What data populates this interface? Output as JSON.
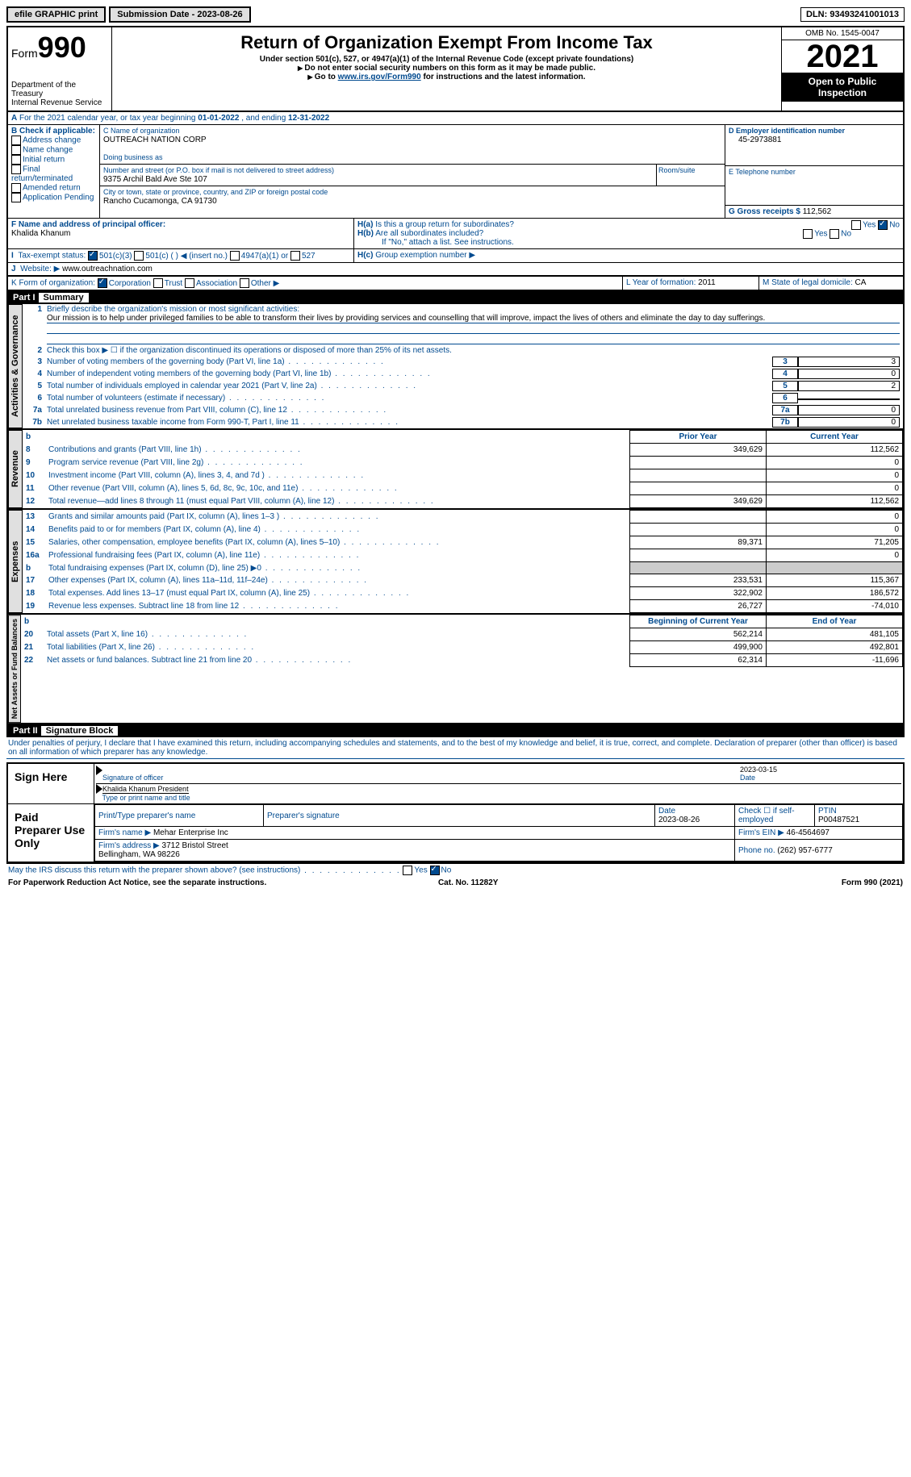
{
  "top": {
    "efile": "efile GRAPHIC print",
    "subdate_lbl": "Submission Date - ",
    "subdate": "2023-08-26",
    "dln_lbl": "DLN: ",
    "dln": "93493241001013"
  },
  "hdr": {
    "form": "Form",
    "num": "990",
    "dept": "Department of the Treasury\nInternal Revenue Service",
    "title": "Return of Organization Exempt From Income Tax",
    "sub1": "Under section 501(c), 527, or 4947(a)(1) of the Internal Revenue Code (except private foundations)",
    "sub2": "Do not enter social security numbers on this form as it may be made public.",
    "sub3": "Go to ",
    "link": "www.irs.gov/Form990",
    "sub3b": " for instructions and the latest information.",
    "omb": "OMB No. 1545-0047",
    "year": "2021",
    "inspect": "Open to Public Inspection"
  },
  "A": {
    "text": "For the 2021 calendar year, or tax year beginning ",
    "begin": "01-01-2022",
    "mid": " , and ending ",
    "end": "12-31-2022"
  },
  "B": {
    "lbl": "B Check if applicable:",
    "items": [
      "Address change",
      "Name change",
      "Initial return",
      "Final return/terminated",
      "Amended return",
      "Application Pending"
    ]
  },
  "C": {
    "lbl": "C Name of organization",
    "name": "OUTREACH NATION CORP",
    "dba_lbl": "Doing business as",
    "addr_lbl": "Number and street (or P.O. box if mail is not delivered to street address)",
    "addr": "9375 Archil Bald Ave Ste 107",
    "room_lbl": "Room/suite",
    "city_lbl": "City or town, state or province, country, and ZIP or foreign postal code",
    "city": "Rancho Cucamonga, CA  91730"
  },
  "D": {
    "lbl": "D Employer identification number",
    "val": "45-2973881"
  },
  "E": {
    "lbl": "E Telephone number"
  },
  "G": {
    "lbl": "G Gross receipts $ ",
    "val": "112,562"
  },
  "F": {
    "lbl": "F Name and address of principal officer:",
    "name": "Khalida Khanum"
  },
  "H": {
    "a": "Is this a group return for subordinates?",
    "b": "Are all subordinates included?",
    "note": "If \"No,\" attach a list. See instructions.",
    "c": "Group exemption number ▶",
    "yes": "Yes",
    "no": "No"
  },
  "I": {
    "lbl": "Tax-exempt status:",
    "opts": [
      "501(c)(3)",
      "501(c) (  ) ◀ (insert no.)",
      "4947(a)(1) or",
      "527"
    ]
  },
  "J": {
    "lbl": "Website: ▶",
    "val": "www.outreachnation.com"
  },
  "K": {
    "lbl": "K Form of organization:",
    "opts": [
      "Corporation",
      "Trust",
      "Association",
      "Other ▶"
    ]
  },
  "L": {
    "lbl": "L Year of formation: ",
    "val": "2011"
  },
  "M": {
    "lbl": "M State of legal domicile: ",
    "val": "CA"
  },
  "p1": {
    "part": "Part I",
    "title": "Summary",
    "tab": "Activities & Governance",
    "l1": {
      "lbl": "Briefly describe the organization's mission or most significant activities:",
      "txt": "Our mission is to help under privileged families to be able to transform their lives by providing services and counselling that will improve, impact the lives of others and eliminate the day to day sufferings."
    },
    "l2": "Check this box ▶ ☐ if the organization discontinued its operations or disposed of more than 25% of its net assets.",
    "lines": [
      {
        "n": "3",
        "d": "Number of voting members of the governing body (Part VI, line 1a)",
        "v": "3"
      },
      {
        "n": "4",
        "d": "Number of independent voting members of the governing body (Part VI, line 1b)",
        "v": "0"
      },
      {
        "n": "5",
        "d": "Total number of individuals employed in calendar year 2021 (Part V, line 2a)",
        "v": "2"
      },
      {
        "n": "6",
        "d": "Total number of volunteers (estimate if necessary)",
        "v": ""
      },
      {
        "n": "7a",
        "d": "Total unrelated business revenue from Part VIII, column (C), line 12",
        "v": "0"
      },
      {
        "n": "7b",
        "d": "Net unrelated business taxable income from Form 990-T, Part I, line 11",
        "v": "0"
      }
    ]
  },
  "rev": {
    "tab": "Revenue",
    "hdr": [
      "",
      "Prior Year",
      "Current Year"
    ],
    "rows": [
      {
        "n": "8",
        "d": "Contributions and grants (Part VIII, line 1h)",
        "p": "349,629",
        "c": "112,562"
      },
      {
        "n": "9",
        "d": "Program service revenue (Part VIII, line 2g)",
        "p": "",
        "c": "0"
      },
      {
        "n": "10",
        "d": "Investment income (Part VIII, column (A), lines 3, 4, and 7d )",
        "p": "",
        "c": "0"
      },
      {
        "n": "11",
        "d": "Other revenue (Part VIII, column (A), lines 5, 6d, 8c, 9c, 10c, and 11e)",
        "p": "",
        "c": "0"
      },
      {
        "n": "12",
        "d": "Total revenue—add lines 8 through 11 (must equal Part VIII, column (A), line 12)",
        "p": "349,629",
        "c": "112,562"
      }
    ]
  },
  "exp": {
    "tab": "Expenses",
    "rows": [
      {
        "n": "13",
        "d": "Grants and similar amounts paid (Part IX, column (A), lines 1–3 )",
        "p": "",
        "c": "0"
      },
      {
        "n": "14",
        "d": "Benefits paid to or for members (Part IX, column (A), line 4)",
        "p": "",
        "c": "0"
      },
      {
        "n": "15",
        "d": "Salaries, other compensation, employee benefits (Part IX, column (A), lines 5–10)",
        "p": "89,371",
        "c": "71,205"
      },
      {
        "n": "16a",
        "d": "Professional fundraising fees (Part IX, column (A), line 11e)",
        "p": "",
        "c": "0"
      },
      {
        "n": "b",
        "d": "Total fundraising expenses (Part IX, column (D), line 25) ▶0",
        "p": "shade",
        "c": "shade"
      },
      {
        "n": "17",
        "d": "Other expenses (Part IX, column (A), lines 11a–11d, 11f–24e)",
        "p": "233,531",
        "c": "115,367"
      },
      {
        "n": "18",
        "d": "Total expenses. Add lines 13–17 (must equal Part IX, column (A), line 25)",
        "p": "322,902",
        "c": "186,572"
      },
      {
        "n": "19",
        "d": "Revenue less expenses. Subtract line 18 from line 12",
        "p": "26,727",
        "c": "-74,010"
      }
    ]
  },
  "net": {
    "tab": "Net Assets or Fund Balances",
    "hdr": [
      "",
      "Beginning of Current Year",
      "End of Year"
    ],
    "rows": [
      {
        "n": "20",
        "d": "Total assets (Part X, line 16)",
        "p": "562,214",
        "c": "481,105"
      },
      {
        "n": "21",
        "d": "Total liabilities (Part X, line 26)",
        "p": "499,900",
        "c": "492,801"
      },
      {
        "n": "22",
        "d": "Net assets or fund balances. Subtract line 21 from line 20",
        "p": "62,314",
        "c": "-11,696"
      }
    ]
  },
  "p2": {
    "part": "Part II",
    "title": "Signature Block",
    "decl": "Under penalties of perjury, I declare that I have examined this return, including accompanying schedules and statements, and to the best of my knowledge and belief, it is true, correct, and complete. Declaration of preparer (other than officer) is based on all information of which preparer has any knowledge.",
    "sign": "Sign Here",
    "sig_lbl": "Signature of officer",
    "date": "2023-03-15",
    "date_lbl": "Date",
    "name": "Khalida Khanum  President",
    "name_lbl": "Type or print name and title",
    "paid": "Paid Preparer Use Only",
    "prep_lbl": "Print/Type preparer's name",
    "psig_lbl": "Preparer's signature",
    "pdate_lbl": "Date",
    "pdate": "2023-08-26",
    "self": "Check ☐ if self-employed",
    "ptin_lbl": "PTIN",
    "ptin": "P00487521",
    "firm_lbl": "Firm's name   ▶ ",
    "firm": "Mehar Enterprise Inc",
    "ein_lbl": "Firm's EIN ▶ ",
    "ein": "46-4564697",
    "faddr_lbl": "Firm's address ▶ ",
    "faddr": "3712 Bristol Street\nBellingham, WA  98226",
    "phone_lbl": "Phone no. ",
    "phone": "(262) 957-6777",
    "discuss": "May the IRS discuss this return with the preparer shown above? (see instructions)"
  },
  "ftr": {
    "l": "For Paperwork Reduction Act Notice, see the separate instructions.",
    "m": "Cat. No. 11282Y",
    "r": "Form 990 (2021)"
  }
}
